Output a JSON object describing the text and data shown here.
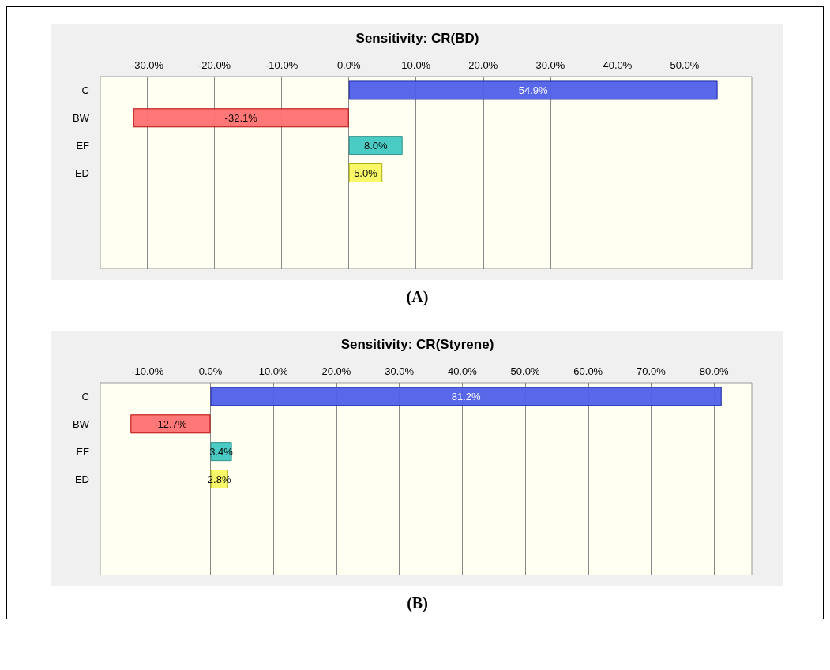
{
  "chart_data": [
    {
      "type": "bar",
      "orientation": "horizontal",
      "title": "Sensitivity: CR(BD)",
      "annotations": [
        "(A)"
      ],
      "categories": [
        "C",
        "BW",
        "EF",
        "ED"
      ],
      "values": [
        54.9,
        -32.1,
        8.0,
        5.0
      ],
      "value_labels": [
        "54.9%",
        "-32.1%",
        "8.0%",
        "5.0%"
      ],
      "colors": [
        "#5060e8",
        "#ff7070",
        "#40c8c0",
        "#f8f860"
      ],
      "xlim": [
        -37,
        60
      ],
      "xticks": [
        {
          "value": -30,
          "label": "-30.0%"
        },
        {
          "value": -20,
          "label": "-20.0%"
        },
        {
          "value": -10,
          "label": "-10.0%"
        },
        {
          "value": 0,
          "label": "0.0%"
        },
        {
          "value": 10,
          "label": "10.0%"
        },
        {
          "value": 20,
          "label": "20.0%"
        },
        {
          "value": 30,
          "label": "30.0%"
        },
        {
          "value": 40,
          "label": "40.0%"
        },
        {
          "value": 50,
          "label": "50.0%"
        }
      ],
      "grid": "x"
    },
    {
      "type": "bar",
      "orientation": "horizontal",
      "title": "Sensitivity: CR(Styrene)",
      "annotations": [
        "(B)"
      ],
      "categories": [
        "C",
        "BW",
        "EF",
        "ED"
      ],
      "values": [
        81.2,
        -12.7,
        3.4,
        2.8
      ],
      "value_labels": [
        "81.2%",
        "-12.7%",
        "3.4%",
        "2.8%"
      ],
      "colors": [
        "#5060e8",
        "#ff7070",
        "#40c8c0",
        "#f8f860"
      ],
      "xlim": [
        -17.5,
        86
      ],
      "xticks": [
        {
          "value": -10,
          "label": "-10.0%"
        },
        {
          "value": 0,
          "label": "0.0%"
        },
        {
          "value": 10,
          "label": "10.0%"
        },
        {
          "value": 20,
          "label": "20.0%"
        },
        {
          "value": 30,
          "label": "30.0%"
        },
        {
          "value": 40,
          "label": "40.0%"
        },
        {
          "value": 50,
          "label": "50.0%"
        },
        {
          "value": 60,
          "label": "60.0%"
        },
        {
          "value": 70,
          "label": "70.0%"
        },
        {
          "value": 80,
          "label": "80.0%"
        }
      ],
      "grid": "x"
    }
  ]
}
